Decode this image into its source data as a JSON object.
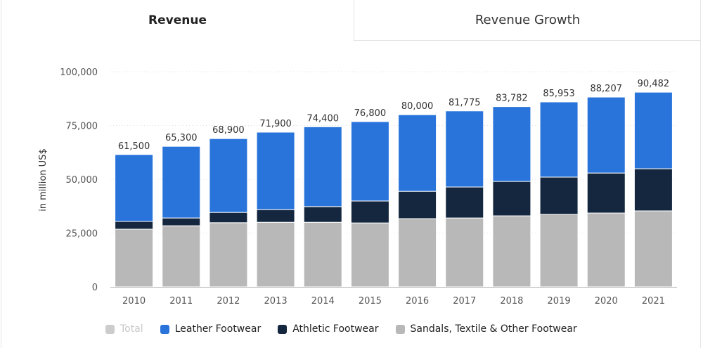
{
  "tabs": [
    {
      "label": "Revenue",
      "active": true
    },
    {
      "label": "Revenue Growth",
      "active": false
    }
  ],
  "chart_data": {
    "type": "bar",
    "stacked": true,
    "title": "",
    "xlabel": "",
    "ylabel": "in million US$",
    "ylim": [
      0,
      100000
    ],
    "yticks": [
      0,
      25000,
      50000,
      75000,
      100000
    ],
    "ytick_labels": [
      "0",
      "25,000",
      "50,000",
      "75,000",
      "100,000"
    ],
    "grid": true,
    "legend_position": "bottom",
    "categories": [
      "2010",
      "2011",
      "2012",
      "2013",
      "2014",
      "2015",
      "2016",
      "2017",
      "2018",
      "2019",
      "2020",
      "2021"
    ],
    "totals": [
      61500,
      65300,
      68900,
      71900,
      74400,
      76800,
      80000,
      81775,
      83782,
      85953,
      88207,
      90482
    ],
    "total_labels": [
      "61,500",
      "65,300",
      "68,900",
      "71,900",
      "74,400",
      "76,800",
      "80,000",
      "81,775",
      "83,782",
      "85,953",
      "88,207",
      "90,482"
    ],
    "series": [
      {
        "name": "Sandals, Textile & Other Footwear",
        "color": "#b8b8b8",
        "values": [
          26800,
          28400,
          29800,
          30000,
          30000,
          29700,
          31700,
          32000,
          33000,
          33700,
          34300,
          35300
        ]
      },
      {
        "name": "Athletic Footwear",
        "color": "#14273e",
        "values": [
          3600,
          3600,
          4800,
          5900,
          7300,
          10200,
          12700,
          14400,
          16000,
          17300,
          18600,
          19600
        ]
      },
      {
        "name": "Leather Footwear",
        "color": "#2874db",
        "values": [
          31100,
          33300,
          34300,
          36000,
          37100,
          36900,
          35600,
          35375,
          34782,
          34953,
          35307,
          35582
        ]
      }
    ],
    "legend": [
      {
        "name": "Total",
        "color": "#cccccc",
        "disabled": true
      },
      {
        "name": "Leather Footwear",
        "color": "#2874db",
        "disabled": false
      },
      {
        "name": "Athletic Footwear",
        "color": "#14273e",
        "disabled": false
      },
      {
        "name": "Sandals, Textile & Other Footwear",
        "color": "#b8b8b8",
        "disabled": false
      }
    ]
  }
}
